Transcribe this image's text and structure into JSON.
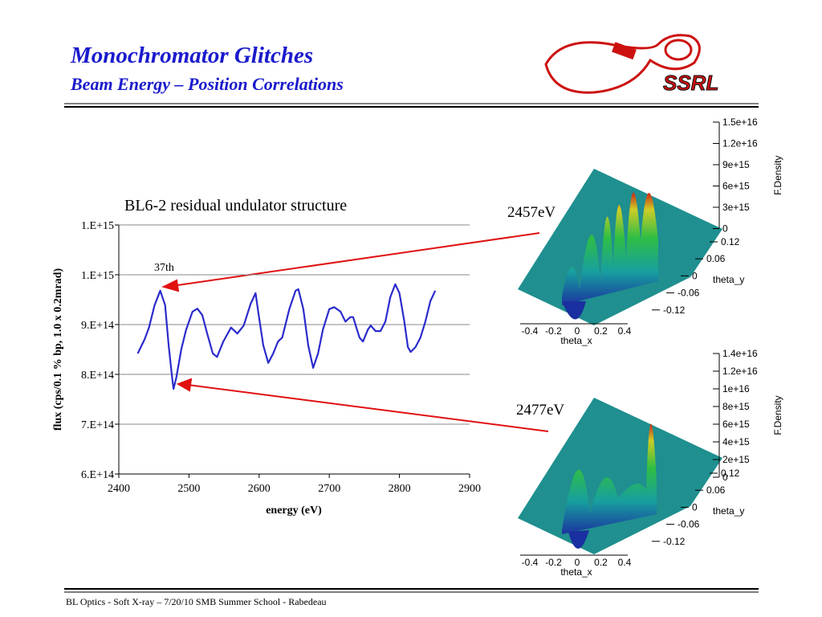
{
  "header": {
    "title": "Monochromator Glitches",
    "subtitle": "Beam Energy – Position Correlations",
    "logo": "SSRL"
  },
  "chart_data": {
    "type": "line",
    "title": "BL6-2 residual undulator structure",
    "x_label": "energy (eV)",
    "y_label": "flux (cps/0.1 % bp, 1.0 x 0.2mrad)",
    "annotation": "37th",
    "color": "#2b2bcc",
    "grid": true,
    "x": [
      2427,
      2437,
      2443,
      2451,
      2459,
      2466,
      2471,
      2476,
      2478,
      2482,
      2489,
      2496,
      2505,
      2512,
      2519,
      2526,
      2534,
      2540,
      2549,
      2560,
      2569,
      2578,
      2588,
      2595,
      2599,
      2606,
      2613,
      2620,
      2627,
      2633,
      2643,
      2652,
      2656,
      2663,
      2670,
      2677,
      2684,
      2691,
      2700,
      2707,
      2716,
      2723,
      2730,
      2734,
      2743,
      2748,
      2755,
      2759,
      2766,
      2773,
      2780,
      2787,
      2794,
      2800,
      2807,
      2812,
      2816,
      2823,
      2830,
      2837,
      2844,
      2851
    ],
    "values": [
      842000000000000.0,
      871000000000000.0,
      894000000000000.0,
      939000000000000.0,
      968000000000000.0,
      939000000000000.0,
      858000000000000.0,
      794000000000000.0,
      771000000000000.0,
      794000000000000.0,
      850000000000000.0,
      890000000000000.0,
      926000000000000.0,
      932000000000000.0,
      919000000000000.0,
      882000000000000.0,
      842000000000000.0,
      835000000000000.0,
      866000000000000.0,
      894000000000000.0,
      882000000000000.0,
      898000000000000.0,
      942000000000000.0,
      963000000000000.0,
      923000000000000.0,
      858000000000000.0,
      823000000000000.0,
      842000000000000.0,
      866000000000000.0,
      874000000000000.0,
      931000000000000.0,
      968000000000000.0,
      971000000000000.0,
      931000000000000.0,
      858000000000000.0,
      813000000000000.0,
      842000000000000.0,
      890000000000000.0,
      931000000000000.0,
      935000000000000.0,
      926000000000000.0,
      906000000000000.0,
      915000000000000.0,
      915000000000000.0,
      874000000000000.0,
      866000000000000.0,
      890000000000000.0,
      898000000000000.0,
      887000000000000.0,
      887000000000000.0,
      906000000000000.0,
      955000000000000.0,
      981000000000000.0,
      963000000000000.0,
      906000000000000.0,
      855000000000000.0,
      845000000000000.0,
      855000000000000.0,
      874000000000000.0,
      906000000000000.0,
      947000000000000.0,
      968000000000000.0
    ],
    "xlim": [
      2400,
      2900
    ],
    "xticks": [
      2400,
      2500,
      2600,
      2700,
      2800,
      2900
    ],
    "ylim": [
      600000000000000.0,
      1100000000000000.0
    ],
    "yticks": [
      {
        "value": 600000000000000.0,
        "label": "6.E+14"
      },
      {
        "value": 700000000000000.0,
        "label": "7.E+14"
      },
      {
        "value": 800000000000000.0,
        "label": "8.E+14"
      },
      {
        "value": 900000000000000.0,
        "label": "9.E+14"
      },
      {
        "value": 1000000000000000.0,
        "label": "1.E+15"
      },
      {
        "value": 1100000000000000.0,
        "label": "1.E+15"
      }
    ]
  },
  "surface_plots": [
    {
      "label": "2457eV",
      "z_title": "F.Density",
      "z_ticks": [
        "1.5e+16",
        "1.2e+16",
        "9e+15",
        "6e+15",
        "3e+15",
        "0"
      ],
      "y_title": "theta_y",
      "y_ticks": [
        "0.12",
        "0.06",
        "0",
        "-0.06",
        "-0.12"
      ],
      "x_title": "theta_x",
      "x_ticks": [
        "-0.4",
        "-0.2",
        "0",
        "0.2",
        "0.4"
      ]
    },
    {
      "label": "2477eV",
      "z_title": "F.Density",
      "z_ticks": [
        "1.4e+16",
        "1.2e+16",
        "1e+16",
        "8e+15",
        "6e+15",
        "4e+15",
        "2e+15",
        "0"
      ],
      "y_title": "theta_y",
      "y_ticks": [
        "0.12",
        "0.06",
        "0",
        "-0.06",
        "-0.12"
      ],
      "x_title": "theta_x",
      "x_ticks": [
        "-0.4",
        "-0.2",
        "0",
        "0.2",
        "0.4"
      ]
    }
  ],
  "footer": "BL Optics -  Soft X-ray – 7/20/10 SMB Summer School - Rabedeau"
}
